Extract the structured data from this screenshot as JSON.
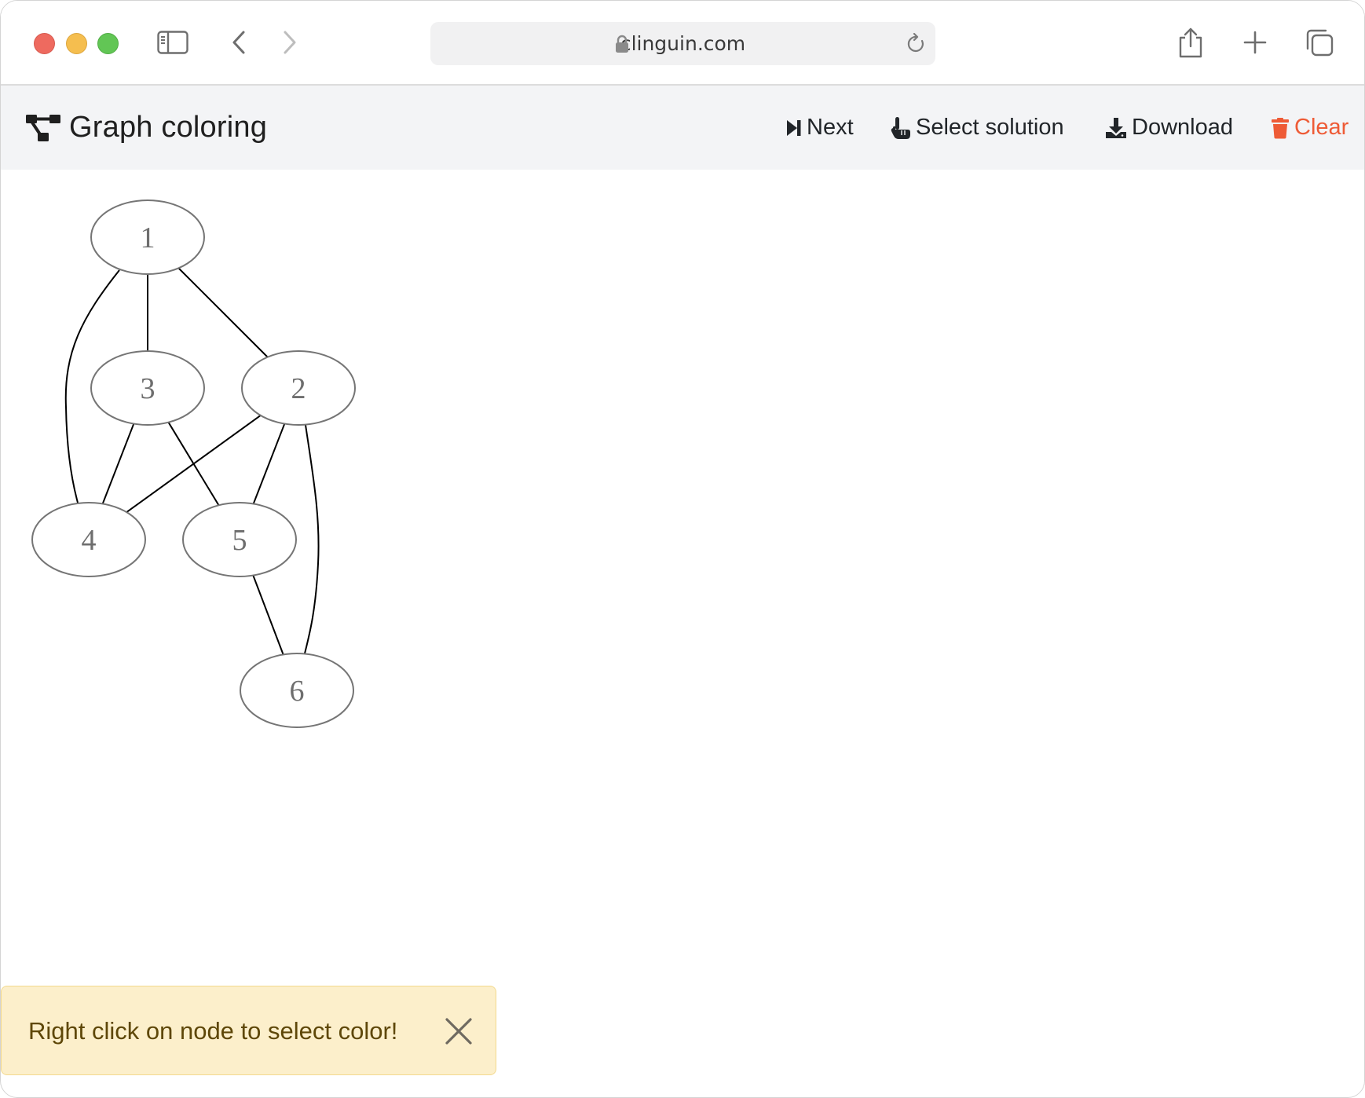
{
  "browser": {
    "url": "clinguin.com",
    "traffic_lights": {
      "close_color": "#ee6a5f",
      "minimize_color": "#f5be4f",
      "zoom_color": "#62c655"
    }
  },
  "navbar": {
    "title": "Graph coloring",
    "buttons": {
      "next": "Next",
      "select_solution": "Select solution",
      "download": "Download",
      "clear": "Clear"
    },
    "clear_color": "#ee5b36"
  },
  "graph": {
    "nodes": [
      {
        "id": "1",
        "label": "1"
      },
      {
        "id": "2",
        "label": "2"
      },
      {
        "id": "3",
        "label": "3"
      },
      {
        "id": "4",
        "label": "4"
      },
      {
        "id": "5",
        "label": "5"
      },
      {
        "id": "6",
        "label": "6"
      }
    ],
    "edges": [
      [
        "1",
        "3"
      ],
      [
        "1",
        "2"
      ],
      [
        "1",
        "4"
      ],
      [
        "3",
        "4"
      ],
      [
        "3",
        "5"
      ],
      [
        "2",
        "4"
      ],
      [
        "2",
        "5"
      ],
      [
        "2",
        "6"
      ],
      [
        "5",
        "6"
      ]
    ]
  },
  "toast": {
    "message": "Right click on node to select color!"
  }
}
